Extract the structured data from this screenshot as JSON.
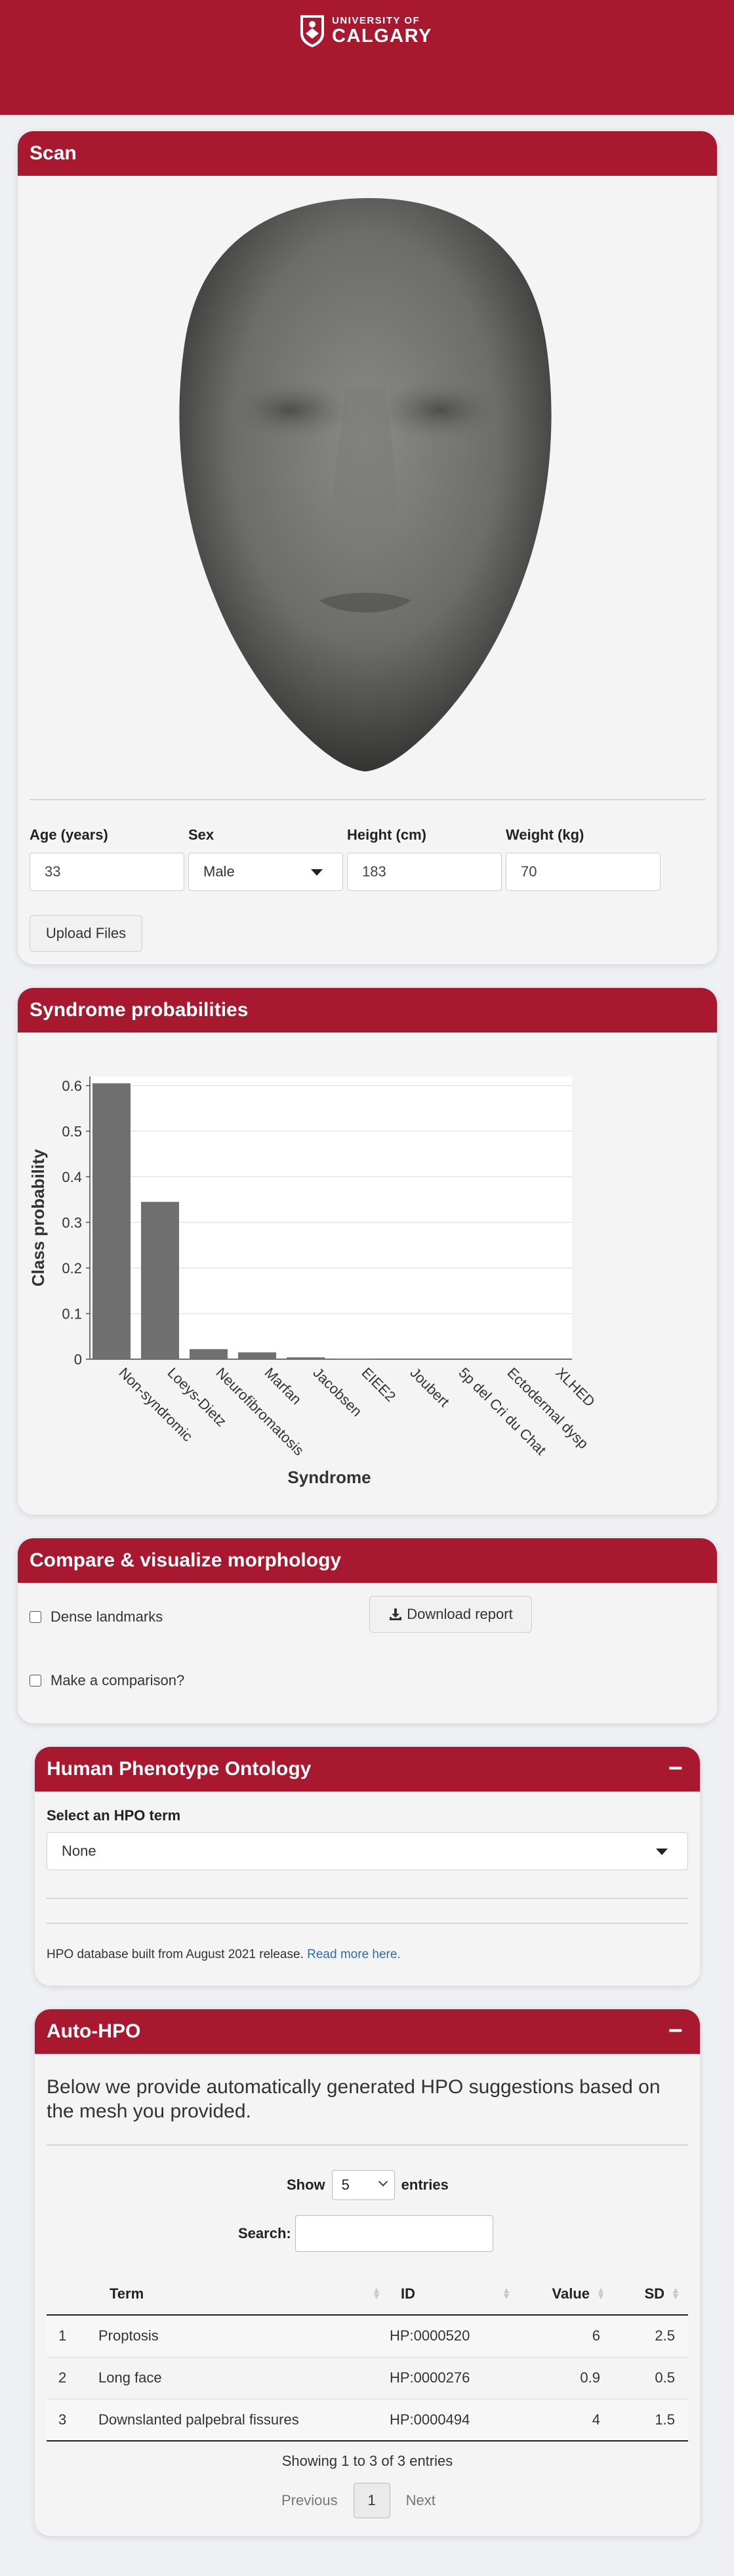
{
  "header": {
    "logo_line1": "UNIVERSITY OF",
    "logo_line2": "CALGARY",
    "brand_color": "#a8192f"
  },
  "scan": {
    "title": "Scan",
    "age_label": "Age (years)",
    "age_value": "33",
    "sex_label": "Sex",
    "sex_value": "Male",
    "height_label": "Height (cm)",
    "height_value": "183",
    "weight_label": "Weight (kg)",
    "weight_value": "70",
    "upload_button": "Upload Files"
  },
  "syndrome": {
    "title": "Syndrome probabilities",
    "chart_data": {
      "type": "bar",
      "xlabel": "Syndrome",
      "ylabel": "Class probability",
      "ylim": [
        0,
        0.62
      ],
      "yticks": [
        "0",
        "0.1",
        "0.2",
        "0.3",
        "0.4",
        "0.5",
        "0.6"
      ],
      "categories": [
        "Non-syndromic",
        "Loeys-Dietz",
        "Neurofibromatosis",
        "Marfan",
        "Jacobsen",
        "EIEE2",
        "Joubert",
        "5p del Cri du Chat",
        "Ectodermal dysp",
        "XLHED"
      ],
      "values": [
        0.605,
        0.345,
        0.022,
        0.015,
        0.004,
        0.001,
        0.0,
        0.0,
        0.0,
        0.0
      ],
      "grid": true,
      "bar_color": "#6f6f6f"
    }
  },
  "compare": {
    "title": "Compare & visualize morphology",
    "dense_landmarks": "Dense landmarks",
    "download_report": "Download report",
    "make_comparison": "Make a comparison?"
  },
  "hpo": {
    "title": "Human Phenotype Ontology",
    "collapse_icon": "−",
    "select_label": "Select an HPO term",
    "select_value": "None",
    "footer_text": "HPO database built from August 2021 release. ",
    "footer_link": "Read more here."
  },
  "autohpo": {
    "title": "Auto-HPO",
    "collapse_icon": "−",
    "description": "Below we provide automatically generated HPO suggestions based on the mesh you provided.",
    "show_label": "Show",
    "show_value": "5",
    "entries_label": "entries",
    "search_label": "Search:",
    "columns": [
      "Term",
      "ID",
      "Value",
      "SD"
    ],
    "rows": [
      {
        "n": "1",
        "term": "Proptosis",
        "id": "HP:0000520",
        "value": "6",
        "sd": "2.5"
      },
      {
        "n": "2",
        "term": "Long face",
        "id": "HP:0000276",
        "value": "0.9",
        "sd": "0.5"
      },
      {
        "n": "3",
        "term": "Downslanted palpebral fissures",
        "id": "HP:0000494",
        "value": "4",
        "sd": "1.5"
      }
    ],
    "showing_text": "Showing 1 to 3 of 3 entries",
    "previous": "Previous",
    "page": "1",
    "next": "Next"
  }
}
